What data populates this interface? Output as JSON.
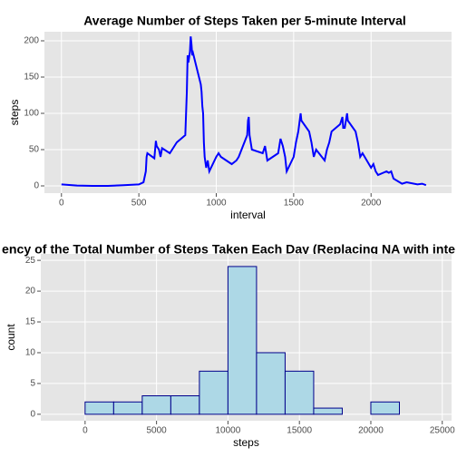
{
  "chart_data": [
    {
      "type": "line",
      "title": "Average Number of Steps Taken per 5-minute Interval",
      "x_label": "interval",
      "y_label": "steps",
      "color": "#0000ff",
      "grid": true,
      "x": [
        0,
        100,
        200,
        300,
        400,
        500,
        530,
        545,
        550,
        555,
        600,
        610,
        615,
        630,
        640,
        650,
        700,
        715,
        730,
        745,
        800,
        810,
        815,
        820,
        830,
        835,
        840,
        845,
        850,
        900,
        905,
        910,
        915,
        920,
        925,
        935,
        945,
        955,
        1000,
        1015,
        1030,
        1100,
        1130,
        1145,
        1200,
        1205,
        1210,
        1215,
        1230,
        1300,
        1315,
        1330,
        1400,
        1415,
        1430,
        1445,
        1455,
        1500,
        1515,
        1530,
        1545,
        1550,
        1600,
        1615,
        1630,
        1645,
        1700,
        1715,
        1730,
        1745,
        1800,
        1815,
        1820,
        1830,
        1845,
        1850,
        1900,
        1915,
        1930,
        1945,
        2000,
        2015,
        2030,
        2045,
        2100,
        2115,
        2130,
        2145,
        2200,
        2230,
        2300,
        2330,
        2355
      ],
      "values": [
        2,
        0.5,
        0,
        0,
        1,
        2,
        5,
        20,
        40,
        45,
        38,
        62,
        55,
        50,
        40,
        52,
        45,
        50,
        55,
        60,
        70,
        130,
        180,
        170,
        185,
        206,
        195,
        180,
        183,
        140,
        130,
        110,
        100,
        60,
        40,
        25,
        35,
        20,
        40,
        45,
        40,
        30,
        35,
        40,
        70,
        90,
        95,
        70,
        50,
        45,
        55,
        35,
        45,
        65,
        55,
        40,
        20,
        40,
        60,
        75,
        100,
        90,
        75,
        60,
        40,
        50,
        35,
        50,
        60,
        75,
        85,
        95,
        80,
        80,
        100,
        90,
        75,
        60,
        40,
        45,
        25,
        30,
        20,
        15,
        20,
        18,
        20,
        10,
        3,
        5,
        2,
        3,
        1
      ],
      "xlim": [
        -110,
        2520
      ],
      "xticks": [
        0,
        500,
        1000,
        1500,
        2000
      ],
      "ylim": [
        -10,
        212.5
      ],
      "yticks": [
        0,
        50,
        100,
        150,
        200
      ]
    },
    {
      "type": "histogram",
      "title": "ency of the Total Number of Steps Taken Each Day (Replacing NA with inte",
      "x_label": "steps",
      "y_label": "count",
      "color": "#add8e6",
      "edge_color": "#00008b",
      "grid": true,
      "bins": [
        -2000,
        0,
        2000,
        4000,
        6000,
        8000,
        10000,
        12000,
        14000,
        16000,
        18000,
        20000,
        22000,
        24000
      ],
      "values": [
        0,
        2,
        2,
        3,
        3,
        7,
        24,
        10,
        7,
        1,
        0,
        2,
        0
      ],
      "xlim": [
        -3100,
        25650
      ],
      "xticks": [
        0,
        5000,
        10000,
        15000,
        20000,
        25000
      ],
      "ylim": [
        -1.05,
        26.05
      ],
      "yticks": [
        0,
        5,
        10,
        15,
        20,
        25
      ]
    }
  ]
}
